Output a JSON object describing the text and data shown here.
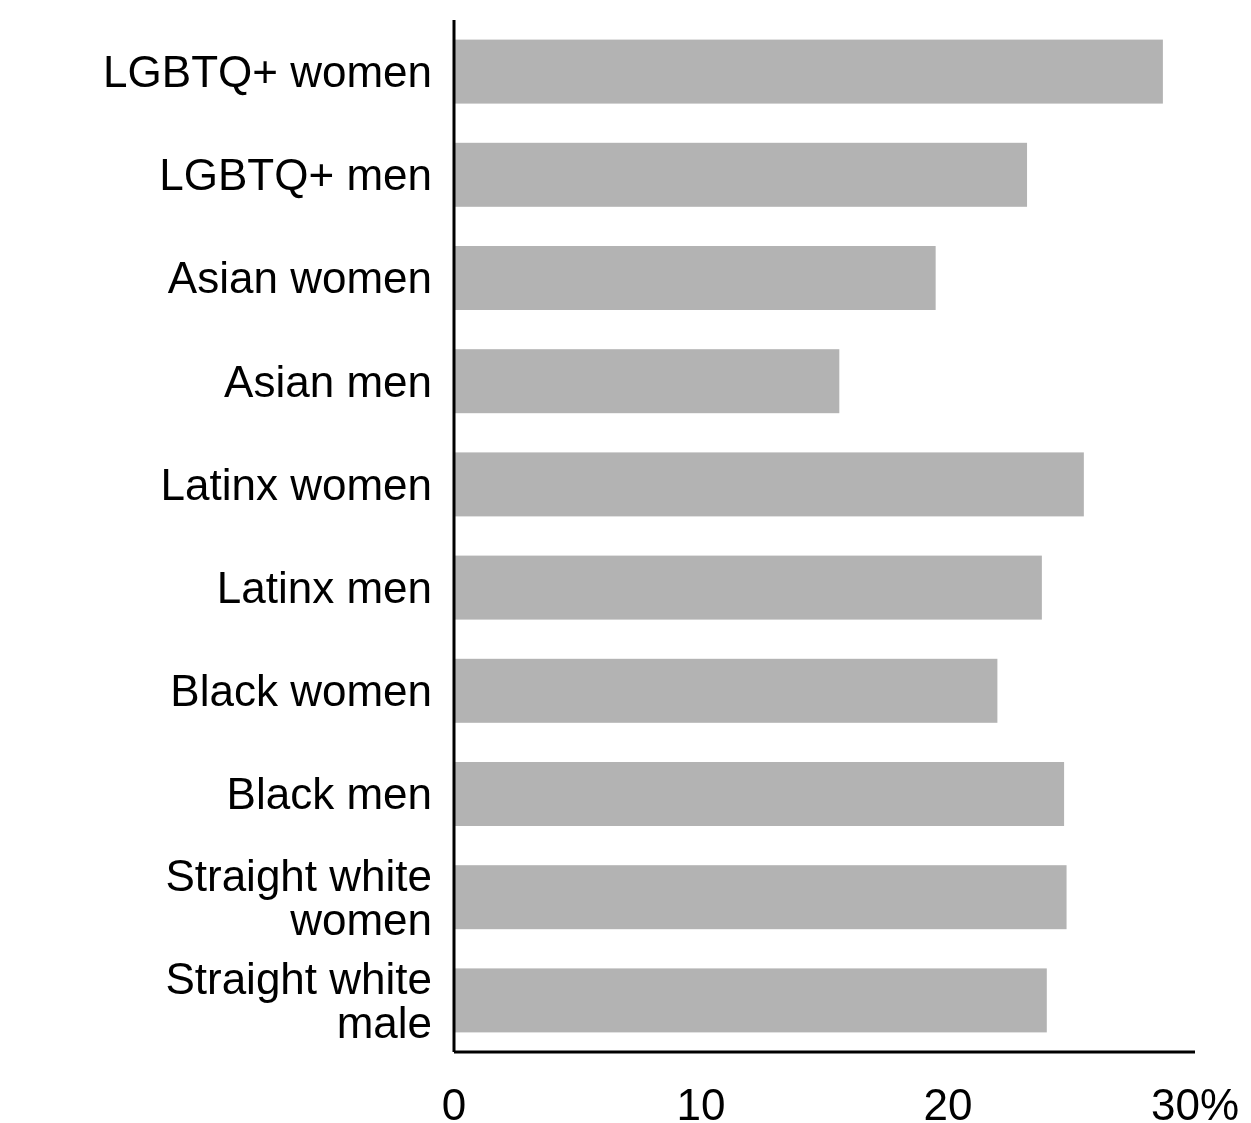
{
  "chart_data": {
    "type": "bar",
    "orientation": "horizontal",
    "categories": [
      "LGBTQ+ women",
      "LGBTQ+ men",
      "Asian women",
      "Asian men",
      "Latinx women",
      "Latinx men",
      "Black women",
      "Black men",
      "Straight white women",
      "Straight white male"
    ],
    "values": [
      28.7,
      23.2,
      19.5,
      15.6,
      25.5,
      23.8,
      22.0,
      24.7,
      24.8,
      24.0
    ],
    "color": "#b3b3b3",
    "xlim": [
      0,
      30
    ],
    "xticks": [
      0,
      10,
      20,
      {
        "value": 30,
        "label": "30%"
      }
    ],
    "grid": false
  }
}
